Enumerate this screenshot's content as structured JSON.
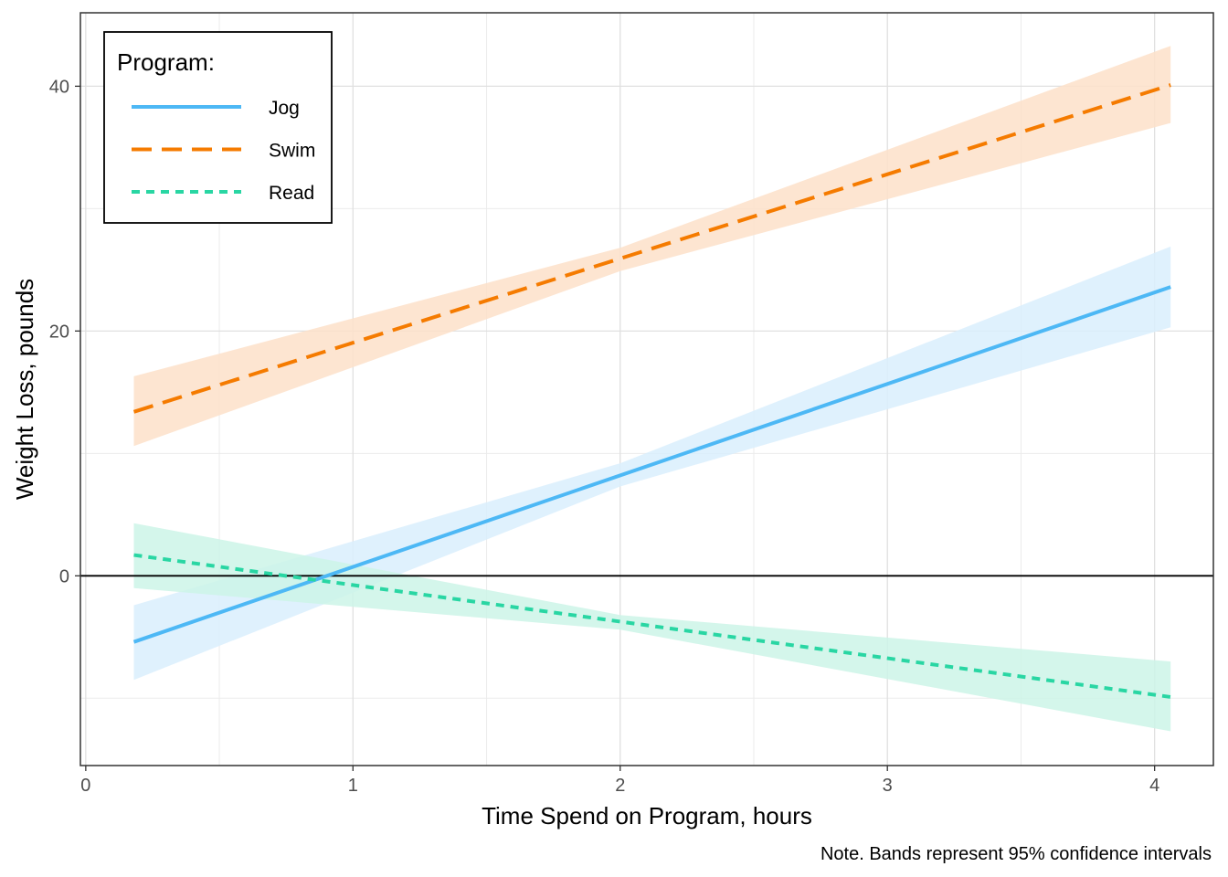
{
  "chart_data": {
    "type": "line",
    "title": "",
    "xlabel": "Time Spend on Program, hours",
    "ylabel": "Weight Loss, pounds",
    "caption": "Note. Bands represent 95% confidence intervals",
    "xlim": [
      -0.02,
      4.22
    ],
    "ylim": [
      -15.5,
      46.0
    ],
    "x_ticks": [
      0,
      1,
      2,
      3,
      4
    ],
    "y_ticks": [
      0,
      20,
      40
    ],
    "x_tick_labels": [
      "0",
      "1",
      "2",
      "3",
      "4"
    ],
    "y_tick_labels": [
      "0",
      "20",
      "40"
    ],
    "x_minor_gridlines": [
      0.5,
      1.5,
      2.5,
      3.5
    ],
    "y_minor_gridlines": [
      -10,
      10,
      30
    ],
    "reference_line_y": 0,
    "grid": true,
    "legend": {
      "title": "Program:",
      "position": "top-left",
      "entries": [
        "Jog",
        "Swim",
        "Read"
      ]
    },
    "series": [
      {
        "name": "Jog",
        "color": "#4db8f5",
        "band_color": "#d9effd",
        "linestyle": "solid",
        "x": [
          0.18,
          4.06
        ],
        "y": [
          -5.4,
          23.6
        ],
        "lower": [
          -8.5,
          20.3
        ],
        "upper": [
          -2.4,
          26.9
        ],
        "x_mid": 2.0,
        "mid_lower": 7.3,
        "mid_upper": 9.2
      },
      {
        "name": "Swim",
        "color": "#f57b00",
        "band_color": "#fde0c9",
        "linestyle": "dashed",
        "x": [
          0.18,
          4.06
        ],
        "y": [
          13.4,
          40.1
        ],
        "lower": [
          10.6,
          37.0
        ],
        "upper": [
          16.3,
          43.3
        ],
        "x_mid": 2.0,
        "mid_lower": 24.9,
        "mid_upper": 26.8
      },
      {
        "name": "Read",
        "color": "#29d6a3",
        "band_color": "#ccf4e7",
        "linestyle": "dotted",
        "x": [
          0.18,
          4.06
        ],
        "y": [
          1.7,
          -9.9
        ],
        "lower": [
          -1.0,
          -12.7
        ],
        "upper": [
          4.3,
          -7.0
        ],
        "x_mid": 2.0,
        "mid_lower": -4.4,
        "mid_upper": -3.2
      }
    ]
  }
}
